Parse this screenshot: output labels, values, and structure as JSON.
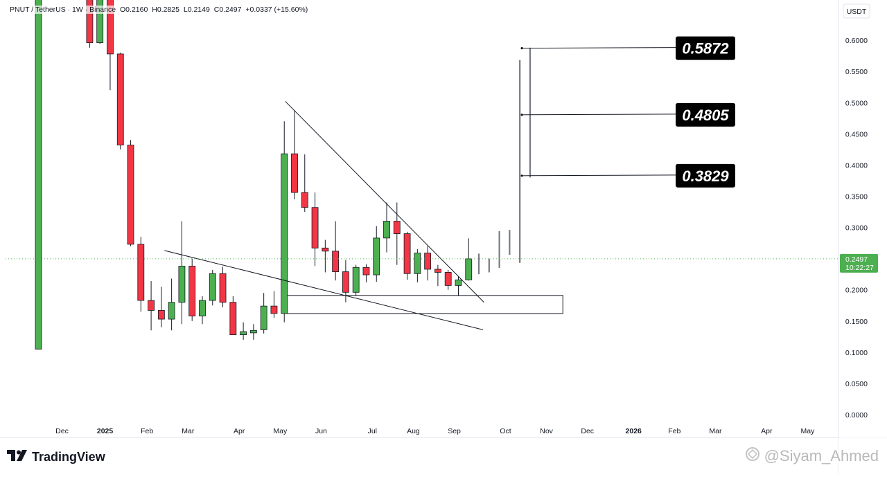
{
  "header": {
    "symbol": "PNUT / TetherUS · 1W · Binance",
    "open": "O0.2160",
    "high": "H0.2825",
    "low": "L0.2149",
    "close": "C0.2497",
    "change": "+0.0337 (+15.60%)"
  },
  "axis": {
    "currency_label": "USDT",
    "price_ticks": [
      "0.6000",
      "0.5500",
      "0.5000",
      "0.4500",
      "0.4000",
      "0.3500",
      "0.3000",
      "0.2500",
      "0.2000",
      "0.1500",
      "0.1000",
      "0.0500",
      "0.0000"
    ],
    "last_price": "0.2497",
    "countdown": "10:22:27"
  },
  "brand": {
    "name": "TradingView"
  },
  "watermark": {
    "text": "@Siyam_Ahmed"
  },
  "colors": {
    "up": "#4caf50",
    "down": "#f23645",
    "line": "#131722",
    "bar_ghost": "#787b86",
    "label_bg": "#000000"
  },
  "chart_data": {
    "type": "candlestick",
    "ylim": [
      0,
      0.6
    ],
    "x_ticks": [
      {
        "label": "Dec",
        "bold": false,
        "idx": 2.3
      },
      {
        "label": "2025",
        "bold": true,
        "idx": 6.5
      },
      {
        "label": "Feb",
        "bold": false,
        "idx": 10.6
      },
      {
        "label": "Mar",
        "bold": false,
        "idx": 14.6
      },
      {
        "label": "Apr",
        "bold": false,
        "idx": 19.6
      },
      {
        "label": "May",
        "bold": false,
        "idx": 23.6
      },
      {
        "label": "Jun",
        "bold": false,
        "idx": 27.6
      },
      {
        "label": "Jul",
        "bold": false,
        "idx": 32.6
      },
      {
        "label": "Aug",
        "bold": false,
        "idx": 36.6
      },
      {
        "label": "Sep",
        "bold": false,
        "idx": 40.6
      },
      {
        "label": "Oct",
        "bold": false,
        "idx": 45.6
      },
      {
        "label": "Nov",
        "bold": false,
        "idx": 49.6
      },
      {
        "label": "Dec",
        "bold": false,
        "idx": 53.6
      },
      {
        "label": "2026",
        "bold": true,
        "idx": 58.1
      },
      {
        "label": "Feb",
        "bold": false,
        "idx": 62.1
      },
      {
        "label": "Mar",
        "bold": false,
        "idx": 66.1
      },
      {
        "label": "Apr",
        "bold": false,
        "idx": 71.1
      },
      {
        "label": "May",
        "bold": false,
        "idx": 75.1
      }
    ],
    "candles": [
      {
        "i": 0,
        "o": 0.105,
        "h": 0.75,
        "l": 0.105,
        "c": 0.75
      },
      {
        "i": 5,
        "o": 0.75,
        "h": 0.75,
        "l": 0.588,
        "c": 0.596
      },
      {
        "i": 6,
        "o": 0.596,
        "h": 0.75,
        "l": 0.594,
        "c": 0.75
      },
      {
        "i": 7,
        "o": 0.75,
        "h": 0.75,
        "l": 0.52,
        "c": 0.578
      },
      {
        "i": 8,
        "o": 0.578,
        "h": 0.58,
        "l": 0.425,
        "c": 0.432
      },
      {
        "i": 9,
        "o": 0.432,
        "h": 0.44,
        "l": 0.27,
        "c": 0.273
      },
      {
        "i": 10,
        "o": 0.273,
        "h": 0.285,
        "l": 0.165,
        "c": 0.183
      },
      {
        "i": 11,
        "o": 0.183,
        "h": 0.214,
        "l": 0.135,
        "c": 0.167
      },
      {
        "i": 12,
        "o": 0.167,
        "h": 0.205,
        "l": 0.14,
        "c": 0.153
      },
      {
        "i": 13,
        "o": 0.153,
        "h": 0.218,
        "l": 0.135,
        "c": 0.18
      },
      {
        "i": 14,
        "o": 0.18,
        "h": 0.31,
        "l": 0.145,
        "c": 0.238
      },
      {
        "i": 15,
        "o": 0.238,
        "h": 0.25,
        "l": 0.15,
        "c": 0.158
      },
      {
        "i": 16,
        "o": 0.158,
        "h": 0.19,
        "l": 0.145,
        "c": 0.183
      },
      {
        "i": 17,
        "o": 0.183,
        "h": 0.232,
        "l": 0.175,
        "c": 0.226
      },
      {
        "i": 18,
        "o": 0.226,
        "h": 0.237,
        "l": 0.172,
        "c": 0.18
      },
      {
        "i": 19,
        "o": 0.18,
        "h": 0.19,
        "l": 0.128,
        "c": 0.128
      },
      {
        "i": 20,
        "o": 0.128,
        "h": 0.148,
        "l": 0.12,
        "c": 0.133
      },
      {
        "i": 21,
        "o": 0.131,
        "h": 0.145,
        "l": 0.12,
        "c": 0.135
      },
      {
        "i": 22,
        "o": 0.136,
        "h": 0.195,
        "l": 0.13,
        "c": 0.174
      },
      {
        "i": 23,
        "o": 0.174,
        "h": 0.198,
        "l": 0.155,
        "c": 0.162
      },
      {
        "i": 24,
        "o": 0.162,
        "h": 0.47,
        "l": 0.148,
        "c": 0.418
      },
      {
        "i": 25,
        "o": 0.418,
        "h": 0.488,
        "l": 0.345,
        "c": 0.356
      },
      {
        "i": 26,
        "o": 0.356,
        "h": 0.417,
        "l": 0.325,
        "c": 0.332
      },
      {
        "i": 27,
        "o": 0.332,
        "h": 0.356,
        "l": 0.238,
        "c": 0.267
      },
      {
        "i": 28,
        "o": 0.267,
        "h": 0.28,
        "l": 0.228,
        "c": 0.262
      },
      {
        "i": 29,
        "o": 0.262,
        "h": 0.31,
        "l": 0.215,
        "c": 0.229
      },
      {
        "i": 30,
        "o": 0.229,
        "h": 0.248,
        "l": 0.18,
        "c": 0.196
      },
      {
        "i": 31,
        "o": 0.196,
        "h": 0.24,
        "l": 0.19,
        "c": 0.236
      },
      {
        "i": 32,
        "o": 0.236,
        "h": 0.241,
        "l": 0.212,
        "c": 0.224
      },
      {
        "i": 33,
        "o": 0.224,
        "h": 0.302,
        "l": 0.213,
        "c": 0.283
      },
      {
        "i": 34,
        "o": 0.283,
        "h": 0.34,
        "l": 0.26,
        "c": 0.31
      },
      {
        "i": 35,
        "o": 0.31,
        "h": 0.34,
        "l": 0.24,
        "c": 0.29
      },
      {
        "i": 36,
        "o": 0.29,
        "h": 0.293,
        "l": 0.216,
        "c": 0.226
      },
      {
        "i": 37,
        "o": 0.226,
        "h": 0.265,
        "l": 0.212,
        "c": 0.259
      },
      {
        "i": 38,
        "o": 0.259,
        "h": 0.27,
        "l": 0.215,
        "c": 0.233
      },
      {
        "i": 39,
        "o": 0.233,
        "h": 0.24,
        "l": 0.206,
        "c": 0.228
      },
      {
        "i": 40,
        "o": 0.228,
        "h": 0.232,
        "l": 0.2,
        "c": 0.207
      },
      {
        "i": 41,
        "o": 0.207,
        "h": 0.222,
        "l": 0.19,
        "c": 0.216
      },
      {
        "i": 42,
        "o": 0.216,
        "h": 0.2825,
        "l": 0.2149,
        "c": 0.2497
      }
    ],
    "projection_bars": [
      {
        "i": 43,
        "lo": 0.225,
        "hi": 0.258
      },
      {
        "i": 44,
        "lo": 0.228,
        "hi": 0.25
      },
      {
        "i": 45,
        "lo": 0.235,
        "hi": 0.294
      },
      {
        "i": 46,
        "lo": 0.256,
        "hi": 0.296
      },
      {
        "i": 47,
        "lo": 0.243,
        "hi": 0.568
      },
      {
        "i": 48,
        "lo": 0.38,
        "hi": 0.588
      }
    ],
    "trendlines": [
      {
        "i1": 24.1,
        "p1": 0.502,
        "i2": 43.5,
        "p2": 0.18
      },
      {
        "i1": 12.3,
        "p1": 0.263,
        "i2": 43.4,
        "p2": 0.136
      }
    ],
    "support_zone": {
      "i1": 24,
      "i2": 51.2,
      "p_top": 0.191,
      "p_bottom": 0.162
    },
    "targets": [
      {
        "label": "0.5872",
        "price": 0.5872
      },
      {
        "label": "0.4805",
        "price": 0.4805
      },
      {
        "label": "0.3829",
        "price": 0.3829
      }
    ],
    "target_origin_idx": 47.2
  }
}
